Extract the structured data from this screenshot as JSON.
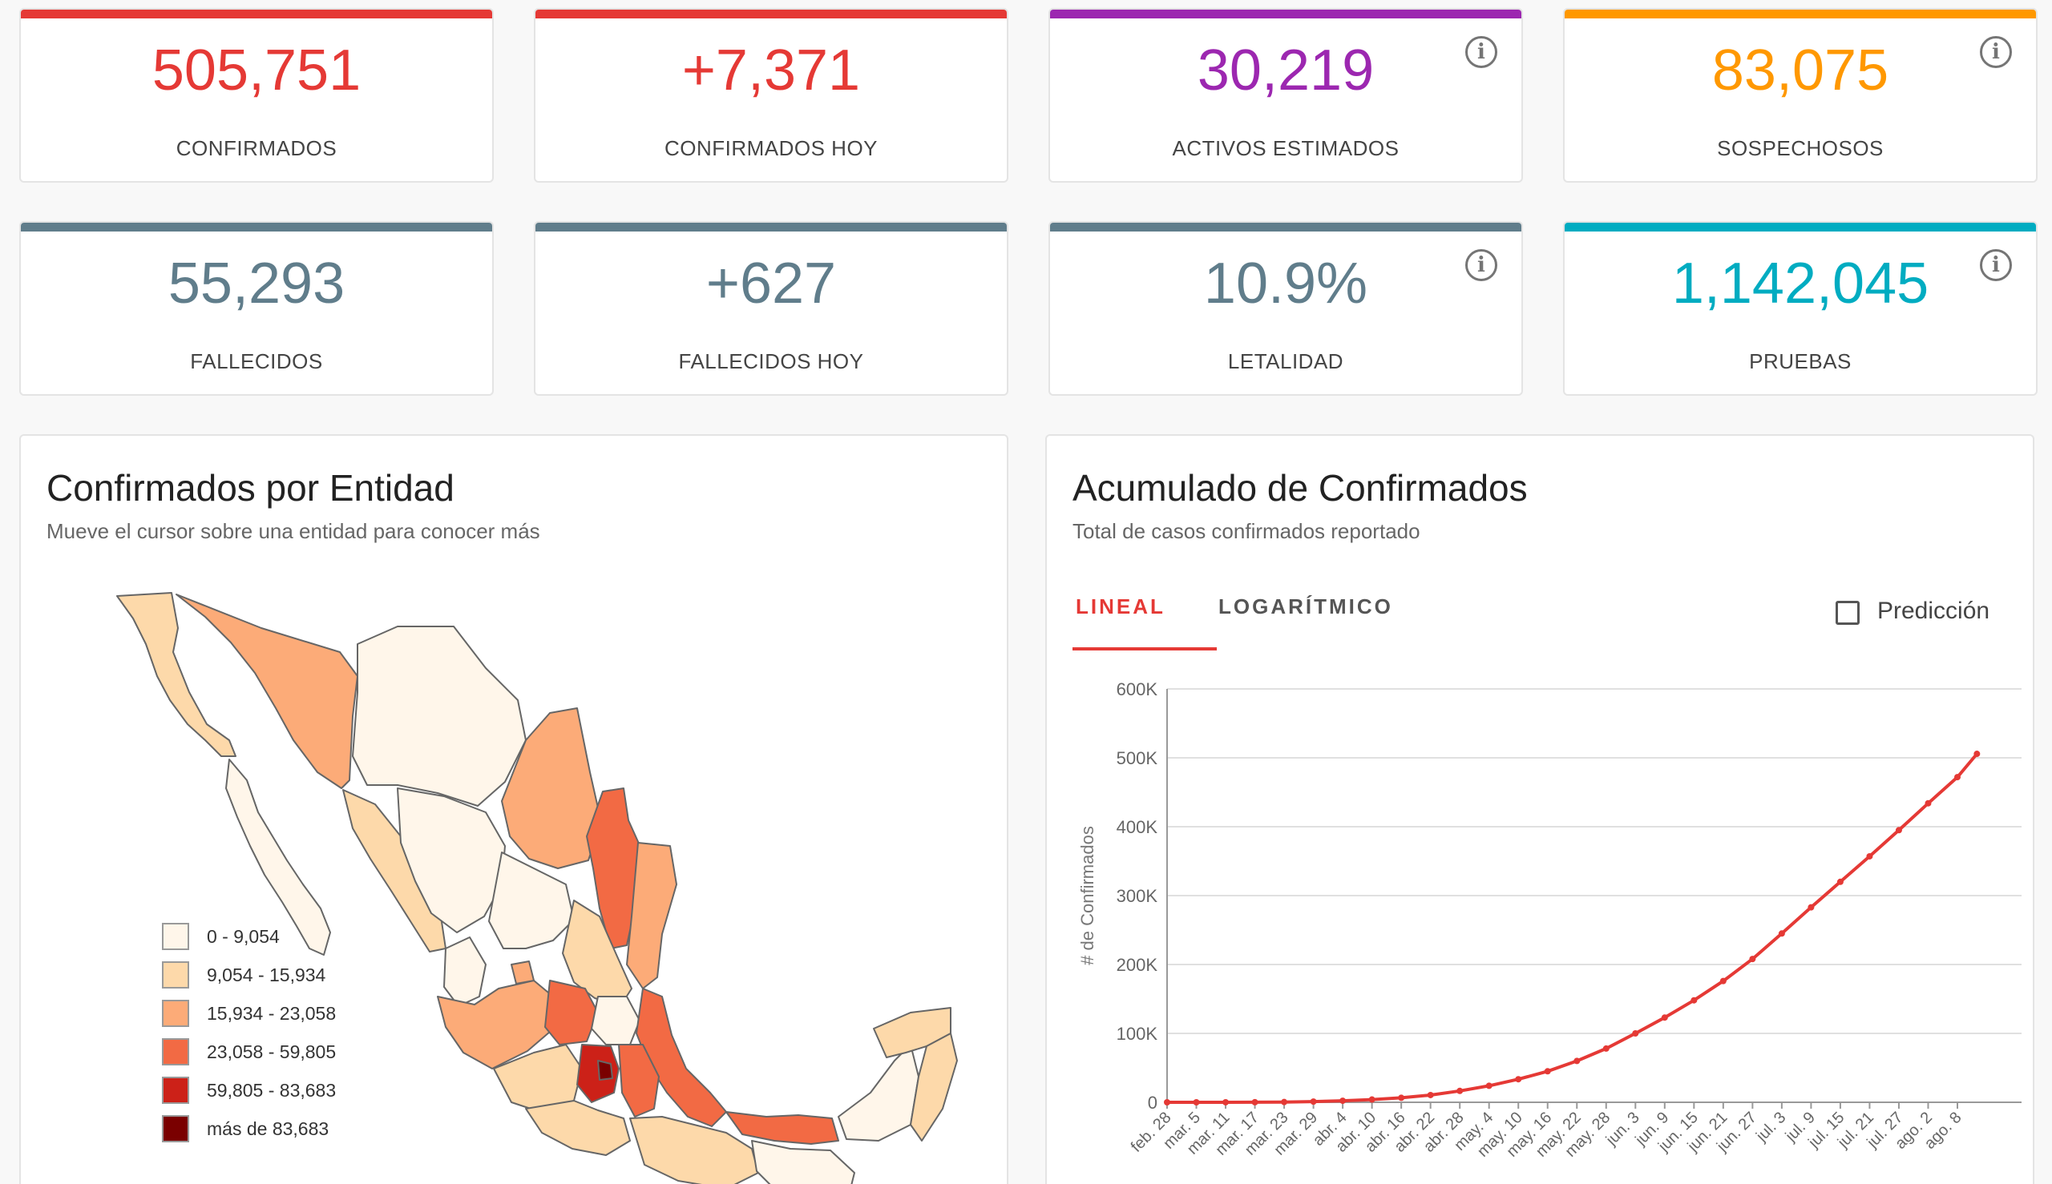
{
  "stats": [
    {
      "value": "505,751",
      "label": "CONFIRMADOS",
      "color": "#e53935",
      "info": false
    },
    {
      "value": "+7,371",
      "label": "CONFIRMADOS HOY",
      "color": "#e53935",
      "info": false
    },
    {
      "value": "30,219",
      "label": "ACTIVOS ESTIMADOS",
      "color": "#9c27b0",
      "info": true
    },
    {
      "value": "83,075",
      "label": "SOSPECHOSOS",
      "color": "#ff9800",
      "info": true
    },
    {
      "value": "55,293",
      "label": "FALLECIDOS",
      "color": "#607d8b",
      "info": false
    },
    {
      "value": "+627",
      "label": "FALLECIDOS HOY",
      "color": "#607d8b",
      "info": false
    },
    {
      "value": "10.9%",
      "label": "LETALIDAD",
      "color": "#607d8b",
      "info": true
    },
    {
      "value": "1,142,045",
      "label": "PRUEBAS",
      "color": "#00acc1",
      "info": true
    }
  ],
  "map_panel": {
    "title": "Confirmados por Entidad",
    "subtitle": "Mueve el cursor sobre una entidad para conocer más",
    "legend": [
      {
        "label": "0 - 9,054",
        "color": "#fff6ea"
      },
      {
        "label": "9,054 - 15,934",
        "color": "#fdd9aa"
      },
      {
        "label": "15,934 - 23,058",
        "color": "#fcab78"
      },
      {
        "label": "23,058 - 59,805",
        "color": "#f26a44"
      },
      {
        "label": "59,805 - 83,683",
        "color": "#cc2118"
      },
      {
        "label": "más de 83,683",
        "color": "#7a0000"
      }
    ]
  },
  "chart_panel": {
    "title": "Acumulado de Confirmados",
    "subtitle": "Total de casos confirmados reportado",
    "tabs": [
      "LINEAL",
      "LOGARÍTMICO"
    ],
    "active_tab": 0,
    "checkbox_label": "Predicción",
    "checkbox_checked": false
  },
  "chart_data": {
    "type": "line",
    "ylabel": "# de Confirmados",
    "ylim": [
      0,
      600000
    ],
    "y_ticks": [
      "0",
      "100K",
      "200K",
      "300K",
      "400K",
      "500K",
      "600K"
    ],
    "grid": true,
    "x_tick_labels": [
      "feb. 28",
      "mar. 5",
      "mar. 11",
      "mar. 17",
      "mar. 23",
      "mar. 29",
      "abr. 4",
      "abr. 10",
      "abr. 16",
      "abr. 22",
      "abr. 28",
      "may. 4",
      "may. 10",
      "may. 16",
      "may. 22",
      "may. 28",
      "jun. 3",
      "jun. 9",
      "jun. 15",
      "jun. 21",
      "jun. 27",
      "jul. 3",
      "jul. 9",
      "jul. 15",
      "jul. 21",
      "jul. 27",
      "ago. 2",
      "ago. 8"
    ],
    "series": [
      {
        "color": "#e53935",
        "x": [
          "feb. 28",
          "mar. 5",
          "mar. 11",
          "mar. 17",
          "mar. 23",
          "mar. 29",
          "abr. 4",
          "abr. 10",
          "abr. 16",
          "abr. 22",
          "abr. 28",
          "may. 4",
          "may. 10",
          "may. 16",
          "may. 22",
          "may. 28",
          "jun. 3",
          "jun. 9",
          "jun. 15",
          "jun. 21",
          "jun. 27",
          "jul. 3",
          "jul. 9",
          "jul. 15",
          "jul. 21",
          "jul. 27",
          "ago. 2",
          "ago. 8",
          "ago. 12"
        ],
        "values": [
          0,
          10,
          20,
          150,
          370,
          1000,
          2200,
          4000,
          6500,
          10500,
          16500,
          24000,
          33500,
          45000,
          60000,
          78000,
          100000,
          123000,
          148000,
          176000,
          208000,
          245000,
          283000,
          320000,
          357000,
          395000,
          434000,
          472000,
          505751
        ]
      }
    ]
  }
}
